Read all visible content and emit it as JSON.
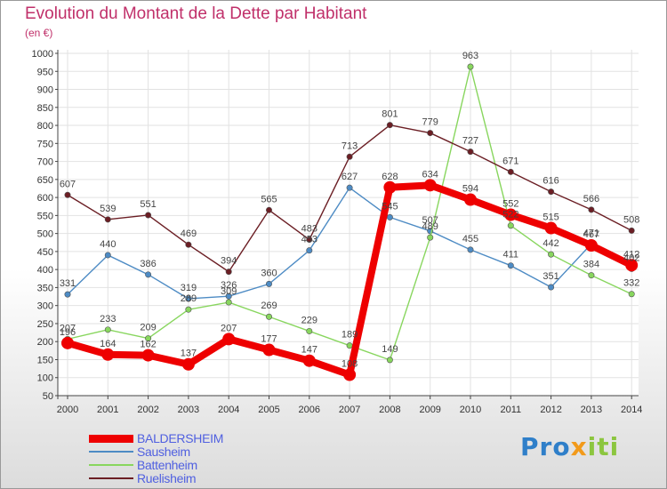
{
  "title": "Evolution du Montant de la Dette par Habitant",
  "unit": "(en €)",
  "logo_text": "Proxiti",
  "chart_data": {
    "type": "line",
    "title": "Evolution du Montant de la Dette par Habitant",
    "ylabel": "(en €)",
    "xlabel": "",
    "ylim": [
      50,
      1000
    ],
    "yticks": [
      50,
      100,
      150,
      200,
      250,
      300,
      350,
      400,
      450,
      500,
      550,
      600,
      650,
      700,
      750,
      800,
      850,
      900,
      950,
      1000
    ],
    "categories": [
      "2000",
      "2001",
      "2002",
      "2003",
      "2004",
      "2005",
      "2006",
      "2007",
      "2008",
      "2009",
      "2010",
      "2011",
      "2012",
      "2013",
      "2014"
    ],
    "series": [
      {
        "name": "BALDERSHEIM",
        "color": "#ee0000",
        "emphasis": true,
        "values": [
          196,
          164,
          162,
          137,
          207,
          177,
          147,
          108,
          628,
          634,
          594,
          552,
          515,
          467,
          412
        ]
      },
      {
        "name": "Sausheim",
        "color": "#4d8bc4",
        "values": [
          331,
          440,
          386,
          319,
          326,
          360,
          453,
          627,
          545,
          507,
          455,
          411,
          351,
          471,
          402
        ]
      },
      {
        "name": "Battenheim",
        "color": "#88d65e",
        "values": [
          207,
          233,
          209,
          289,
          309,
          269,
          229,
          189,
          149,
          489,
          963,
          522,
          442,
          384,
          332
        ]
      },
      {
        "name": "Ruelisheim",
        "color": "#6b1e24",
        "values": [
          607,
          539,
          551,
          469,
          394,
          565,
          483,
          713,
          801,
          779,
          727,
          671,
          616,
          566,
          508
        ]
      }
    ]
  }
}
